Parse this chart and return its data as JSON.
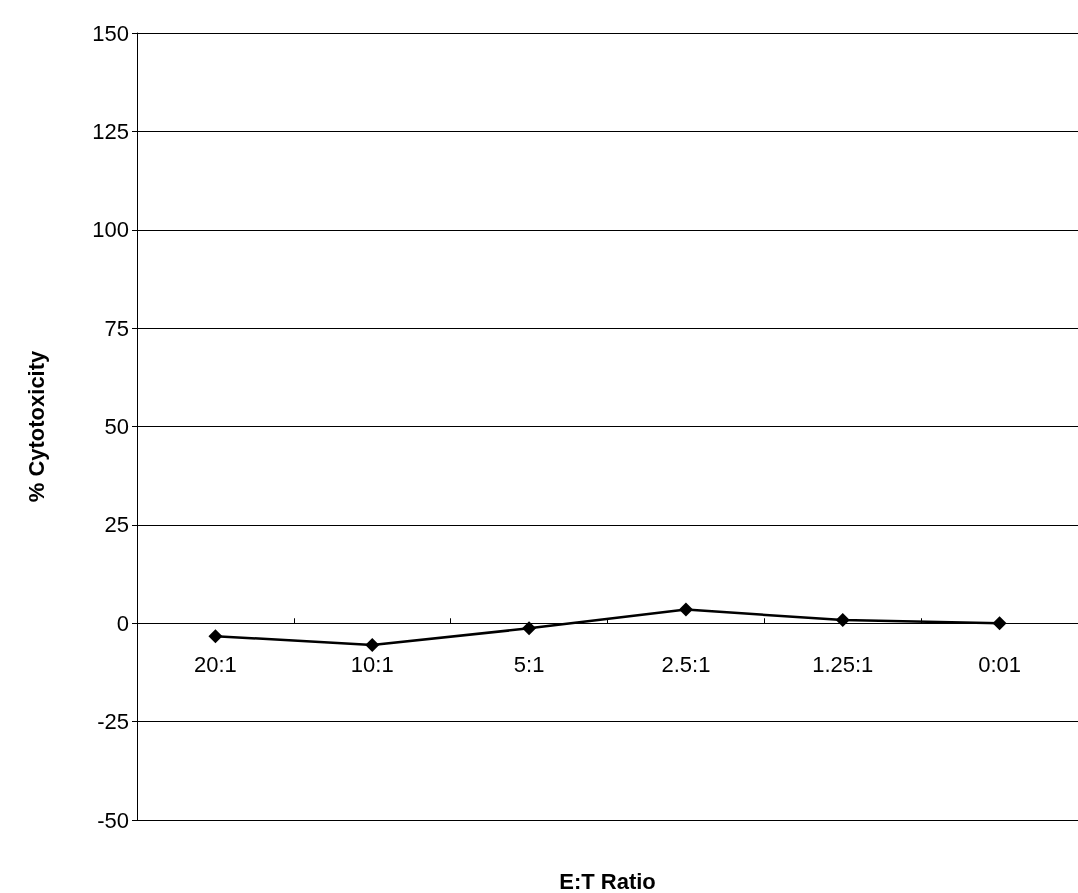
{
  "chart_data": {
    "type": "line",
    "xlabel": "E:T Ratio",
    "ylabel": "% Cytotoxicity",
    "categories": [
      "20:1",
      "10:1",
      "5:1",
      "2.5:1",
      "1.25:1",
      "0:01"
    ],
    "series": [
      {
        "color": "#000000",
        "values": [
          -3.3,
          -5.5,
          -1.3,
          3.5,
          0.8,
          0
        ]
      }
    ],
    "ylim": [
      -50,
      150
    ],
    "yticks": [
      -50,
      -25,
      0,
      25,
      50,
      75,
      100,
      125,
      150
    ],
    "grid": "y",
    "marker": "diamond",
    "line_style": "solid"
  }
}
